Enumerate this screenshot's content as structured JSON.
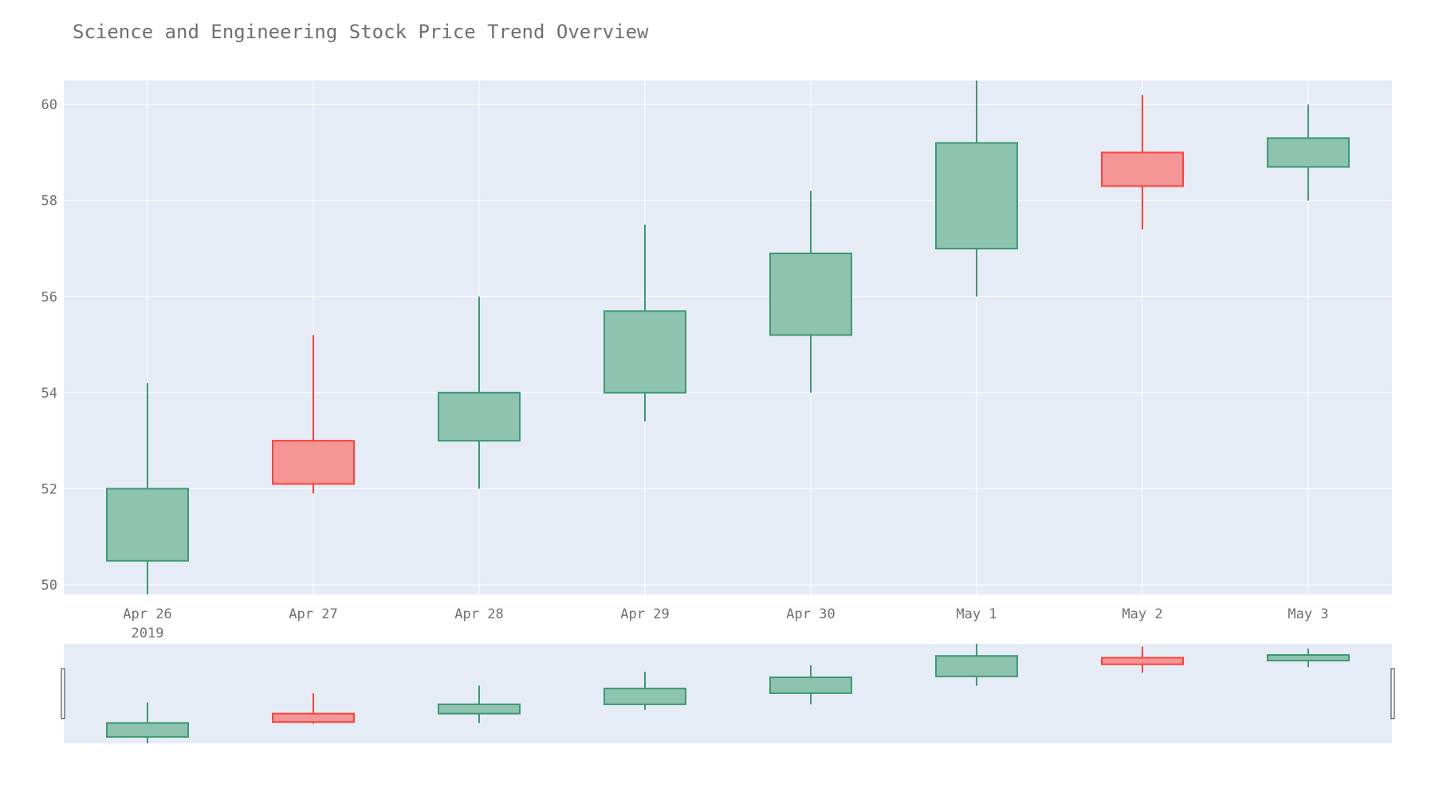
{
  "chart_data": {
    "type": "candlestick",
    "title": "Science and Engineering Stock Price Trend Overview",
    "xlabel": "",
    "ylabel": "",
    "categories": [
      "Apr 26",
      "Apr 27",
      "Apr 28",
      "Apr 29",
      "Apr 30",
      "May 1",
      "May 2",
      "May 3"
    ],
    "year_label": "2019",
    "ylim": [
      49.8,
      60.5
    ],
    "yticks": [
      50,
      52,
      54,
      56,
      58,
      60
    ],
    "range_slider": true,
    "grid": true,
    "series": [
      {
        "open": 50.5,
        "high": 54.2,
        "low": 49.8,
        "close": 52.0
      },
      {
        "open": 53.0,
        "high": 55.2,
        "low": 51.9,
        "close": 52.1
      },
      {
        "open": 53.0,
        "high": 56.0,
        "low": 52.0,
        "close": 54.0
      },
      {
        "open": 54.0,
        "high": 57.5,
        "low": 53.4,
        "close": 55.7
      },
      {
        "open": 55.2,
        "high": 58.2,
        "low": 54.0,
        "close": 56.9
      },
      {
        "open": 57.0,
        "high": 60.5,
        "low": 56.0,
        "close": 59.2
      },
      {
        "open": 59.0,
        "high": 60.2,
        "low": 57.4,
        "close": 58.3
      },
      {
        "open": 58.7,
        "high": 60.0,
        "low": 58.0,
        "close": 59.3
      }
    ],
    "colors": {
      "increasing_line": "#3d9970",
      "increasing_fill": "#8ec3b0",
      "decreasing_line": "#ff4136",
      "decreasing_fill": "#f49696",
      "plot_bg": "#e5ecf6",
      "grid": "#ffffff",
      "text": "#6f6f6f"
    }
  }
}
